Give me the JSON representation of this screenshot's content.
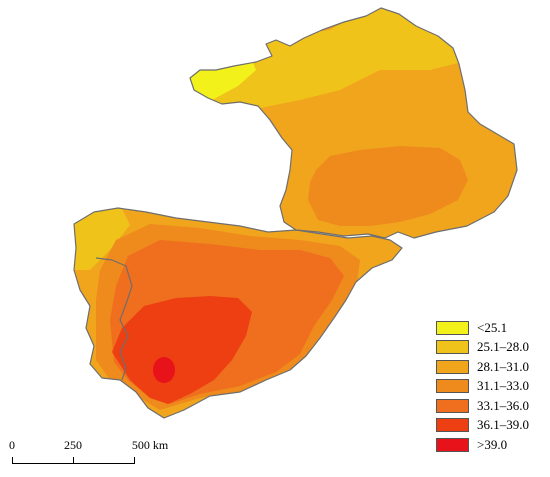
{
  "map": {
    "colors": {
      "c1": "#f2f21a",
      "c2": "#f0c31a",
      "c3": "#f0a51c",
      "c4": "#ef8a1c",
      "c5": "#ef6f1e",
      "c6": "#ee3f12",
      "c7": "#e8131a",
      "border": "#6e6e6e"
    }
  },
  "legend": {
    "items": [
      {
        "label": "<25.1",
        "color": "#f2f21a"
      },
      {
        "label": "25.1–28.0",
        "color": "#f0c31a"
      },
      {
        "label": "28.1–31.0",
        "color": "#f0a51c"
      },
      {
        "label": "31.1–33.0",
        "color": "#ef8a1c"
      },
      {
        "label": "33.1–36.0",
        "color": "#ef6f1e"
      },
      {
        "label": "36.1–39.0",
        "color": "#ee3f12"
      },
      {
        "label": ">39.0",
        "color": "#e8131a"
      }
    ]
  },
  "scalebar": {
    "labels": [
      "0",
      "250",
      "500 km"
    ]
  }
}
